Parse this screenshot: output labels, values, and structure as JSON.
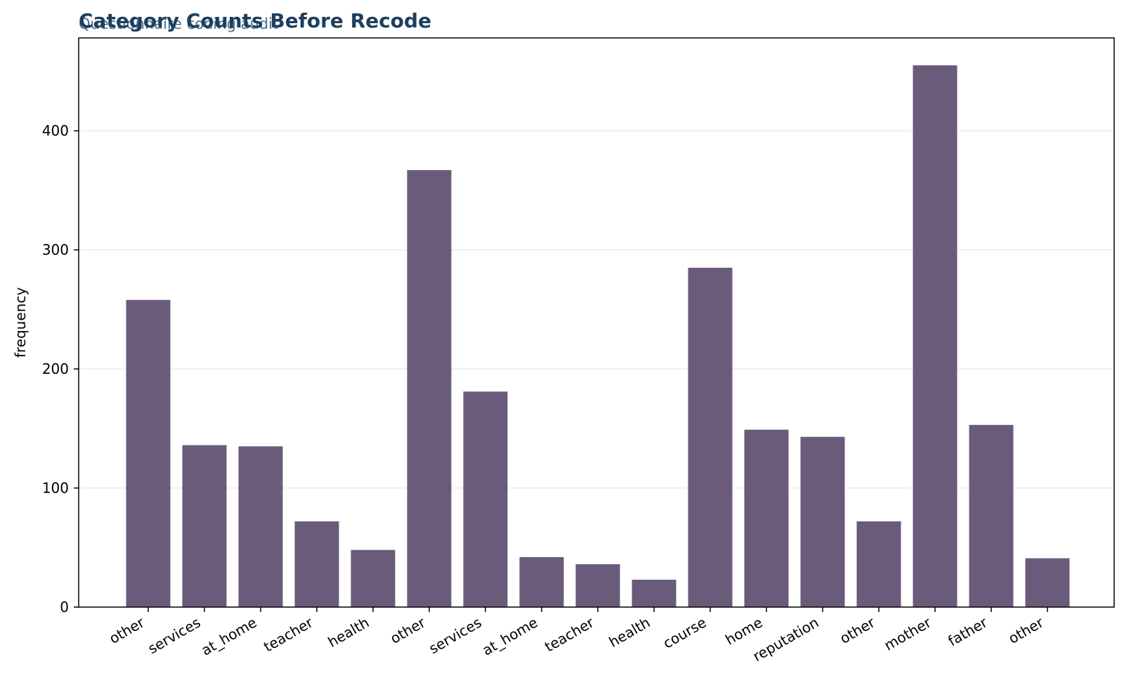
{
  "chart_data": {
    "type": "bar",
    "title": "Category Counts Before Recode",
    "subtitle": "Questionnaire coding audit",
    "xlabel": "",
    "ylabel": "frequency",
    "categories": [
      "other",
      "services",
      "at_home",
      "teacher",
      "health",
      "other",
      "services",
      "at_home",
      "teacher",
      "health",
      "course",
      "home",
      "reputation",
      "other",
      "mother",
      "father",
      "other"
    ],
    "values": [
      258,
      136,
      135,
      72,
      48,
      367,
      181,
      42,
      36,
      23,
      285,
      149,
      143,
      72,
      455,
      153,
      41
    ],
    "ylim": [
      0,
      478
    ],
    "yticks": [
      0,
      100,
      200,
      300,
      400
    ],
    "grid": "horizontal",
    "legend": "none"
  },
  "colors": {
    "bar": "#6b5b7b",
    "title": "#1d3f5e",
    "subtitle": "#4a6f8c",
    "grid": "#ebebeb",
    "axis": "#000000"
  }
}
